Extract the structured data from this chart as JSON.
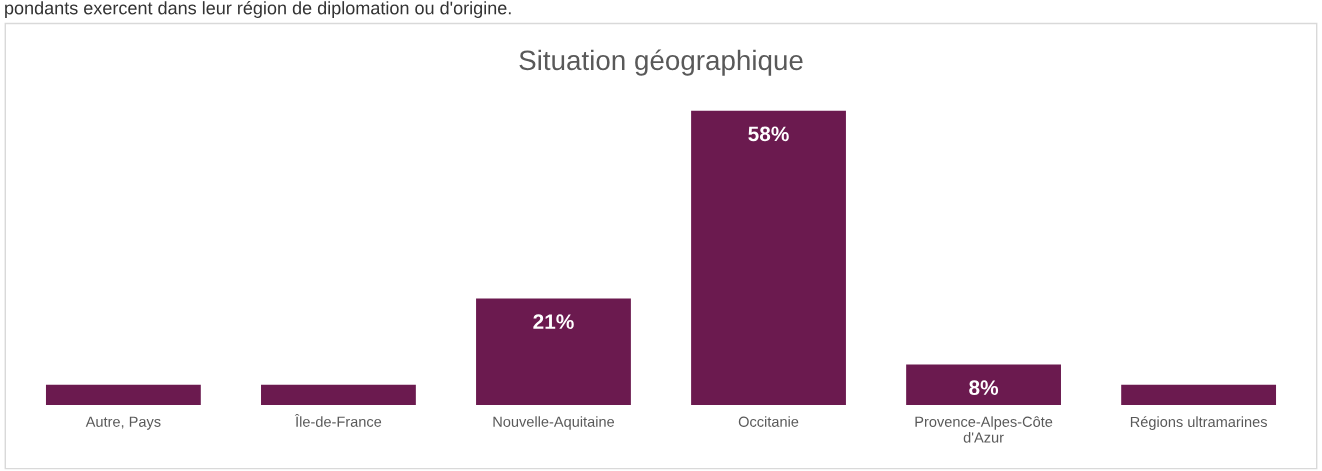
{
  "chart_data": {
    "type": "bar",
    "title": "Situation géographique",
    "categories": [
      "Autre, Pays",
      "Île-de-France",
      "Nouvelle-Aquitaine",
      "Occitanie",
      "Provence-Alpes-Côte d'Azur",
      "Régions ultramarines"
    ],
    "values": [
      4,
      4,
      21,
      58,
      8,
      4
    ],
    "value_labels": [
      null,
      null,
      "21%",
      "58%",
      "8%",
      null
    ],
    "color": "#6b1a4f",
    "annotations": [
      "pondants exercent dans leur région de diplomation ou d'origine."
    ],
    "grid": false,
    "legend": false
  }
}
